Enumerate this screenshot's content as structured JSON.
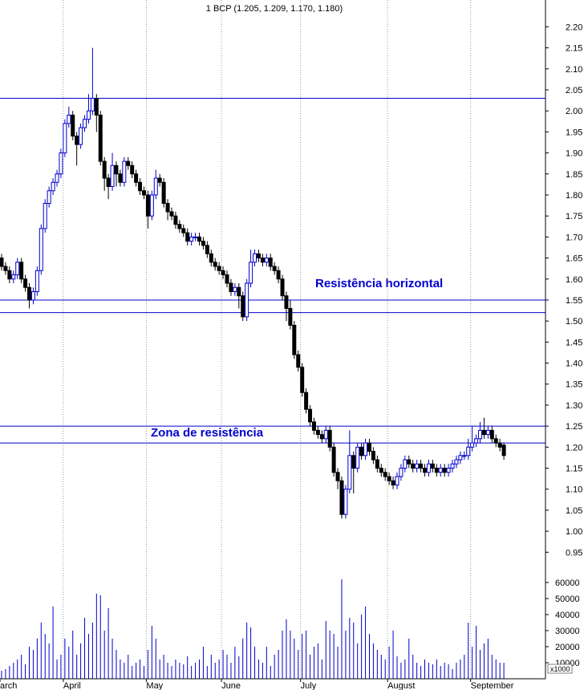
{
  "chart_data": {
    "type": "candlestick",
    "title": "1 BCP (1.205, 1.209, 1.170, 1.180)",
    "categories": [
      "arch",
      null,
      null,
      null,
      null,
      null,
      null,
      null,
      null,
      null,
      null,
      null,
      null,
      null,
      null,
      null,
      "April",
      null,
      null,
      null,
      null,
      null,
      null,
      null,
      null,
      null,
      null,
      null,
      null,
      null,
      null,
      null,
      null,
      null,
      null,
      null,
      null,
      "May",
      null,
      null,
      null,
      null,
      null,
      null,
      null,
      null,
      null,
      null,
      null,
      null,
      null,
      null,
      null,
      null,
      null,
      null,
      "June",
      null,
      null,
      null,
      null,
      null,
      null,
      null,
      null,
      null,
      null,
      null,
      null,
      null,
      null,
      null,
      null,
      null,
      null,
      null,
      "July",
      null,
      null,
      null,
      null,
      null,
      null,
      null,
      null,
      null,
      null,
      null,
      null,
      null,
      null,
      null,
      null,
      null,
      null,
      null,
      null,
      null,
      "August",
      null,
      null,
      null,
      null,
      null,
      null,
      null,
      null,
      null,
      null,
      null,
      null,
      null,
      null,
      null,
      null,
      null,
      null,
      null,
      null,
      "September",
      null,
      null,
      null,
      null,
      null,
      null,
      null,
      null
    ],
    "open": [
      1.65,
      1.63,
      1.62,
      1.6,
      1.61,
      1.64,
      1.6,
      1.58,
      1.55,
      1.57,
      1.62,
      1.72,
      1.78,
      1.81,
      1.83,
      1.85,
      1.9,
      1.97,
      1.99,
      1.94,
      1.92,
      1.96,
      1.98,
      2.0,
      2.03,
      1.99,
      1.88,
      1.84,
      1.82,
      1.87,
      1.85,
      1.83,
      1.88,
      1.87,
      1.85,
      1.83,
      1.81,
      1.8,
      1.75,
      1.8,
      1.84,
      1.83,
      1.78,
      1.76,
      1.75,
      1.73,
      1.72,
      1.71,
      1.69,
      1.7,
      1.7,
      1.69,
      1.68,
      1.66,
      1.64,
      1.63,
      1.62,
      1.61,
      1.59,
      1.57,
      1.58,
      1.56,
      1.51,
      1.59,
      1.64,
      1.66,
      1.65,
      1.64,
      1.65,
      1.63,
      1.62,
      1.6,
      1.56,
      1.53,
      1.49,
      1.42,
      1.39,
      1.33,
      1.29,
      1.26,
      1.24,
      1.23,
      1.22,
      1.24,
      1.2,
      1.14,
      1.12,
      1.04,
      1.1,
      1.18,
      1.15,
      1.2,
      1.18,
      1.21,
      1.19,
      1.17,
      1.15,
      1.14,
      1.13,
      1.12,
      1.11,
      1.13,
      1.15,
      1.17,
      1.16,
      1.15,
      1.16,
      1.15,
      1.14,
      1.16,
      1.15,
      1.14,
      1.15,
      1.14,
      1.15,
      1.16,
      1.17,
      1.18,
      1.18,
      1.2,
      1.21,
      1.22,
      1.24,
      1.23,
      1.24,
      1.22,
      1.21,
      1.205
    ],
    "high": [
      1.66,
      1.64,
      1.63,
      1.62,
      1.65,
      1.65,
      1.61,
      1.59,
      1.58,
      1.63,
      1.73,
      1.79,
      1.82,
      1.84,
      1.86,
      1.91,
      1.98,
      2.01,
      2.0,
      1.95,
      1.97,
      1.99,
      2.04,
      2.15,
      2.04,
      2.0,
      1.89,
      1.85,
      1.9,
      1.88,
      1.86,
      1.89,
      1.89,
      1.88,
      1.86,
      1.84,
      1.82,
      1.81,
      1.81,
      1.86,
      1.85,
      1.84,
      1.79,
      1.77,
      1.76,
      1.74,
      1.73,
      1.72,
      1.71,
      1.71,
      1.71,
      1.7,
      1.69,
      1.67,
      1.65,
      1.64,
      1.63,
      1.62,
      1.6,
      1.59,
      1.59,
      1.57,
      1.6,
      1.67,
      1.67,
      1.67,
      1.66,
      1.66,
      1.66,
      1.64,
      1.63,
      1.61,
      1.57,
      1.55,
      1.5,
      1.43,
      1.4,
      1.34,
      1.3,
      1.27,
      1.25,
      1.24,
      1.25,
      1.25,
      1.21,
      1.15,
      1.13,
      1.11,
      1.24,
      1.19,
      1.21,
      1.21,
      1.22,
      1.22,
      1.2,
      1.18,
      1.16,
      1.15,
      1.14,
      1.13,
      1.14,
      1.16,
      1.18,
      1.18,
      1.17,
      1.17,
      1.17,
      1.16,
      1.17,
      1.17,
      1.16,
      1.16,
      1.16,
      1.16,
      1.17,
      1.18,
      1.19,
      1.19,
      1.22,
      1.25,
      1.23,
      1.26,
      1.27,
      1.25,
      1.25,
      1.23,
      1.22,
      1.209
    ],
    "low": [
      1.62,
      1.61,
      1.59,
      1.59,
      1.6,
      1.59,
      1.57,
      1.53,
      1.54,
      1.56,
      1.61,
      1.71,
      1.77,
      1.8,
      1.82,
      1.84,
      1.89,
      1.96,
      1.93,
      1.87,
      1.91,
      1.95,
      1.97,
      1.99,
      1.95,
      1.87,
      1.81,
      1.79,
      1.81,
      1.82,
      1.82,
      1.82,
      1.86,
      1.84,
      1.82,
      1.8,
      1.79,
      1.72,
      1.74,
      1.79,
      1.82,
      1.77,
      1.74,
      1.74,
      1.72,
      1.71,
      1.7,
      1.68,
      1.68,
      1.69,
      1.68,
      1.67,
      1.65,
      1.63,
      1.62,
      1.61,
      1.6,
      1.58,
      1.56,
      1.56,
      1.53,
      1.5,
      1.5,
      1.58,
      1.63,
      1.64,
      1.63,
      1.63,
      1.62,
      1.61,
      1.59,
      1.55,
      1.5,
      1.48,
      1.41,
      1.38,
      1.32,
      1.28,
      1.25,
      1.23,
      1.22,
      1.21,
      1.21,
      1.19,
      1.13,
      1.1,
      1.03,
      1.03,
      1.09,
      1.09,
      1.14,
      1.17,
      1.17,
      1.18,
      1.16,
      1.14,
      1.13,
      1.12,
      1.11,
      1.1,
      1.1,
      1.12,
      1.14,
      1.15,
      1.14,
      1.14,
      1.14,
      1.13,
      1.13,
      1.14,
      1.13,
      1.13,
      1.13,
      1.13,
      1.14,
      1.15,
      1.16,
      1.17,
      1.17,
      1.19,
      1.2,
      1.21,
      1.22,
      1.22,
      1.21,
      1.2,
      1.19,
      1.17
    ],
    "close": [
      1.63,
      1.62,
      1.6,
      1.61,
      1.64,
      1.6,
      1.58,
      1.55,
      1.57,
      1.62,
      1.72,
      1.78,
      1.81,
      1.83,
      1.85,
      1.9,
      1.97,
      1.99,
      1.94,
      1.92,
      1.96,
      1.98,
      2.0,
      2.03,
      1.99,
      1.88,
      1.84,
      1.82,
      1.87,
      1.85,
      1.83,
      1.88,
      1.87,
      1.85,
      1.83,
      1.81,
      1.8,
      1.75,
      1.8,
      1.84,
      1.83,
      1.78,
      1.76,
      1.75,
      1.73,
      1.72,
      1.71,
      1.69,
      1.7,
      1.7,
      1.69,
      1.68,
      1.66,
      1.64,
      1.63,
      1.62,
      1.61,
      1.59,
      1.57,
      1.58,
      1.56,
      1.51,
      1.59,
      1.64,
      1.66,
      1.65,
      1.64,
      1.65,
      1.63,
      1.62,
      1.6,
      1.56,
      1.53,
      1.49,
      1.42,
      1.39,
      1.33,
      1.29,
      1.26,
      1.24,
      1.23,
      1.22,
      1.24,
      1.2,
      1.14,
      1.12,
      1.04,
      1.1,
      1.18,
      1.15,
      1.2,
      1.18,
      1.21,
      1.19,
      1.17,
      1.15,
      1.14,
      1.13,
      1.12,
      1.11,
      1.13,
      1.15,
      1.17,
      1.16,
      1.15,
      1.16,
      1.15,
      1.14,
      1.16,
      1.15,
      1.14,
      1.15,
      1.14,
      1.15,
      1.16,
      1.17,
      1.18,
      1.18,
      1.2,
      1.21,
      1.22,
      1.24,
      1.23,
      1.24,
      1.22,
      1.21,
      1.2,
      1.18
    ],
    "volume": [
      5000,
      6000,
      8000,
      10000,
      12000,
      15000,
      9000,
      20000,
      18000,
      25000,
      35000,
      28000,
      22000,
      45000,
      12000,
      15000,
      25000,
      20000,
      30000,
      15000,
      22000,
      38000,
      28000,
      35000,
      53000,
      52000,
      30000,
      44000,
      25000,
      18000,
      12000,
      10000,
      15000,
      8000,
      10000,
      12000,
      8000,
      18000,
      33000,
      25000,
      12000,
      15000,
      10000,
      8000,
      12000,
      10000,
      9000,
      14000,
      8000,
      10000,
      12000,
      20000,
      8000,
      15000,
      10000,
      12000,
      18000,
      15000,
      10000,
      20000,
      14000,
      25000,
      35000,
      32000,
      20000,
      12000,
      10000,
      20000,
      8000,
      15000,
      18000,
      30000,
      37000,
      30000,
      25000,
      18000,
      28000,
      30000,
      15000,
      20000,
      22000,
      12000,
      36000,
      30000,
      28000,
      20000,
      62000,
      30000,
      38000,
      35000,
      22000,
      40000,
      45000,
      28000,
      22000,
      18000,
      15000,
      12000,
      20000,
      30000,
      14000,
      10000,
      12000,
      25000,
      15000,
      10000,
      8000,
      12000,
      10000,
      9000,
      12000,
      8000,
      10000,
      9000,
      6000,
      10000,
      12000,
      15000,
      35000,
      20000,
      33000,
      18000,
      22000,
      25000,
      15000,
      12000,
      10000,
      10000
    ],
    "ylim": [
      0.92,
      2.26
    ],
    "yticks": [
      {
        "value": 2.2,
        "label": "2.20"
      },
      {
        "value": 2.15,
        "label": "2.15"
      },
      {
        "value": 2.1,
        "label": "2.10"
      },
      {
        "value": 2.05,
        "label": "2.05"
      },
      {
        "value": 2.0,
        "label": "2.00"
      },
      {
        "value": 1.95,
        "label": "1.95"
      },
      {
        "value": 1.9,
        "label": "1.90"
      },
      {
        "value": 1.85,
        "label": "1.85"
      },
      {
        "value": 1.8,
        "label": "1.80"
      },
      {
        "value": 1.75,
        "label": "1.75"
      },
      {
        "value": 1.7,
        "label": "1.70"
      },
      {
        "value": 1.65,
        "label": "1.65"
      },
      {
        "value": 1.6,
        "label": "1.60"
      },
      {
        "value": 1.55,
        "label": "1.55"
      },
      {
        "value": 1.5,
        "label": "1.50"
      },
      {
        "value": 1.45,
        "label": "1.45"
      },
      {
        "value": 1.4,
        "label": "1.40"
      },
      {
        "value": 1.35,
        "label": "1.35"
      },
      {
        "value": 1.3,
        "label": "1.30"
      },
      {
        "value": 1.25,
        "label": "1.25"
      },
      {
        "value": 1.2,
        "label": "1.20"
      },
      {
        "value": 1.15,
        "label": "1.15"
      },
      {
        "value": 1.1,
        "label": "1.10"
      },
      {
        "value": 1.05,
        "label": "1.05"
      },
      {
        "value": 1.0,
        "label": "1.00"
      },
      {
        "value": 0.95,
        "label": "0.95"
      }
    ],
    "volume_ylim": [
      0,
      70000
    ],
    "volume_yticks": [
      10000,
      20000,
      30000,
      40000,
      50000,
      60000
    ],
    "volume_unit_label": "x1000",
    "hlines": [
      2.03,
      1.55,
      1.52,
      1.25,
      1.21
    ],
    "annotations": [
      "Resistência horizontal",
      "Zona de resistência"
    ],
    "up_color": "#0000cc",
    "down_color": "#000000",
    "line_color": "#0000cc",
    "volume_color": "#0000cc",
    "grid": true
  }
}
